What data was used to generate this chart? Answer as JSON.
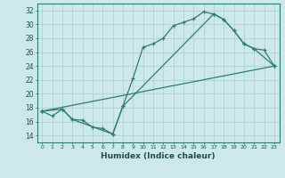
{
  "title": "",
  "xlabel": "Humidex (Indice chaleur)",
  "bg_color": "#cde8e8",
  "line_color": "#2e7d6e",
  "grid_color": "#aacece",
  "xlim": [
    -0.5,
    23.5
  ],
  "ylim": [
    13.0,
    33.0
  ],
  "xticks": [
    0,
    1,
    2,
    3,
    4,
    5,
    6,
    7,
    8,
    9,
    10,
    11,
    12,
    13,
    14,
    15,
    16,
    17,
    18,
    19,
    20,
    21,
    22,
    23
  ],
  "yticks": [
    14,
    16,
    18,
    20,
    22,
    24,
    26,
    28,
    30,
    32
  ],
  "line1_x": [
    0,
    1,
    2,
    3,
    4,
    5,
    6,
    7,
    8,
    9,
    10,
    11,
    12,
    13,
    14,
    15,
    16,
    17,
    18,
    19,
    20,
    21,
    22,
    23
  ],
  "line1_y": [
    17.5,
    16.8,
    17.8,
    16.3,
    16.2,
    15.2,
    15.0,
    14.2,
    18.2,
    22.2,
    26.7,
    27.2,
    28.0,
    29.8,
    30.3,
    30.8,
    31.8,
    31.5,
    30.7,
    29.1,
    27.2,
    26.5,
    26.3,
    24.0
  ],
  "line2_x": [
    0,
    2,
    3,
    7,
    8,
    17,
    18,
    19,
    20,
    21,
    23
  ],
  "line2_y": [
    17.5,
    17.8,
    16.3,
    14.2,
    18.2,
    31.5,
    30.7,
    29.1,
    27.2,
    26.5,
    24.0
  ],
  "line3_x": [
    0,
    23
  ],
  "line3_y": [
    17.5,
    24.0
  ]
}
